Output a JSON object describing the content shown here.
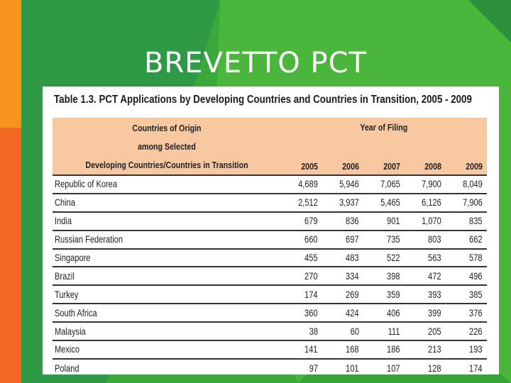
{
  "slide": {
    "title": "BREVETTO PCT",
    "colors": {
      "background": "#3aa83a",
      "accent_orange": "#f7941d",
      "header_fill": "#f8c9a0"
    }
  },
  "table": {
    "caption": "Table 1.3. PCT Applications by Developing Countries and Countries in Transition, 2005 - 2009",
    "origin_header": [
      "Countries of Origin",
      "among Selected",
      "Developing Countries/Countries in Transition"
    ],
    "year_header": "Year of Filing",
    "years": [
      "2005",
      "2006",
      "2007",
      "2008",
      "2009"
    ],
    "rows": [
      {
        "country": "Republic of Korea",
        "values": [
          "4,689",
          "5,946",
          "7,065",
          "7,900",
          "8,049"
        ]
      },
      {
        "country": "China",
        "values": [
          "2,512",
          "3,937",
          "5,465",
          "6,126",
          "7,906"
        ]
      },
      {
        "country": "India",
        "values": [
          "679",
          "836",
          "901",
          "1,070",
          "835"
        ]
      },
      {
        "country": "Russian Federation",
        "values": [
          "660",
          "697",
          "735",
          "803",
          "662"
        ]
      },
      {
        "country": "Singapore",
        "values": [
          "455",
          "483",
          "522",
          "563",
          "578"
        ]
      },
      {
        "country": "Brazil",
        "values": [
          "270",
          "334",
          "398",
          "472",
          "496"
        ]
      },
      {
        "country": "Turkey",
        "values": [
          "174",
          "269",
          "359",
          "393",
          "385"
        ]
      },
      {
        "country": "South Africa",
        "values": [
          "360",
          "424",
          "406",
          "399",
          "376"
        ]
      },
      {
        "country": "Malaysia",
        "values": [
          "38",
          "60",
          "111",
          "205",
          "226"
        ]
      },
      {
        "country": "Mexico",
        "values": [
          "141",
          "168",
          "186",
          "213",
          "193"
        ]
      },
      {
        "country": "Poland",
        "values": [
          "97",
          "101",
          "107",
          "128",
          "174"
        ]
      }
    ]
  }
}
